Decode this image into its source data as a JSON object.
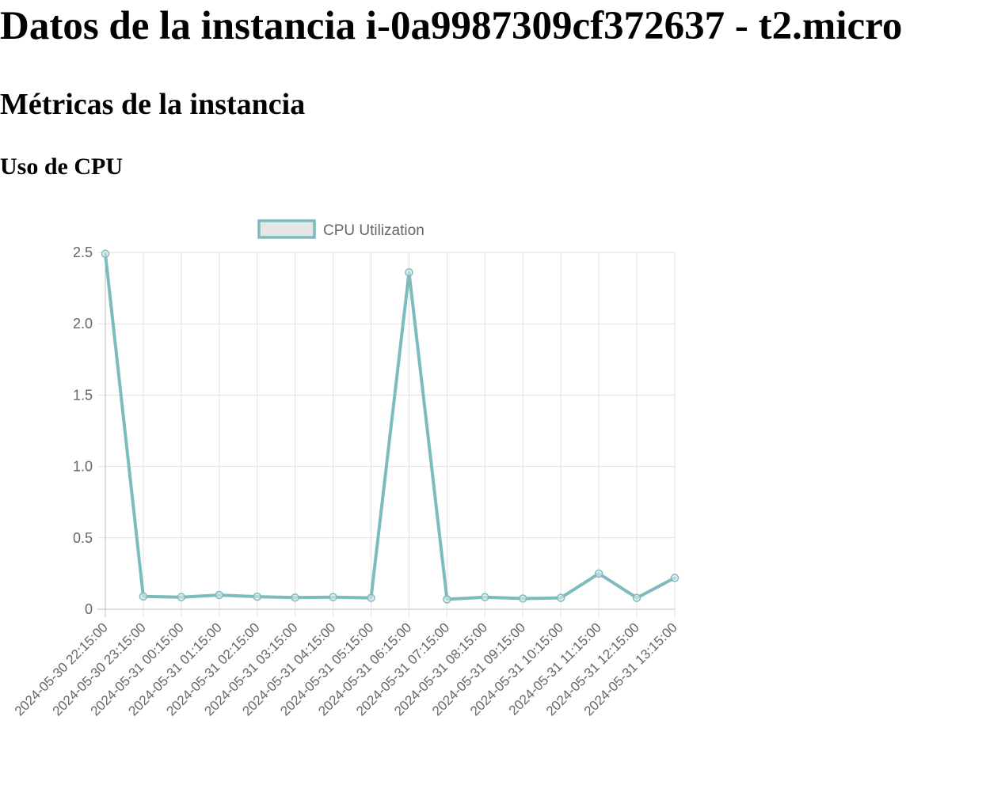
{
  "page": {
    "title": "Datos de la instancia i-0a9987309cf372637 - t2.micro",
    "metrics_heading": "Métricas de la instancia",
    "cpu_heading": "Uso de CPU"
  },
  "chart_data": {
    "type": "line",
    "title": "",
    "xlabel": "",
    "ylabel": "",
    "x": [
      "2024-05-30 22:15:00",
      "2024-05-30 23:15:00",
      "2024-05-31 00:15:00",
      "2024-05-31 01:15:00",
      "2024-05-31 02:15:00",
      "2024-05-31 03:15:00",
      "2024-05-31 04:15:00",
      "2024-05-31 05:15:00",
      "2024-05-31 06:15:00",
      "2024-05-31 07:15:00",
      "2024-05-31 08:15:00",
      "2024-05-31 09:15:00",
      "2024-05-31 10:15:00",
      "2024-05-31 11:15:00",
      "2024-05-31 12:15:00",
      "2024-05-31 13:15:00"
    ],
    "series": [
      {
        "name": "CPU Utilization",
        "values": [
          2.49,
          0.09,
          0.085,
          0.1,
          0.088,
          0.082,
          0.085,
          0.08,
          2.36,
          0.07,
          0.085,
          0.075,
          0.08,
          0.25,
          0.08,
          0.22
        ]
      }
    ],
    "ylim": [
      0,
      2.5
    ],
    "yticks": [
      "0",
      "0.5",
      "1.0",
      "1.5",
      "2.0",
      "2.5"
    ],
    "grid": true,
    "legend_position": "top",
    "colors": {
      "line": "#7dbcbe",
      "legend_fill": "#e6e6e6",
      "grid": "#e1e1e1",
      "text": "#666666"
    }
  }
}
